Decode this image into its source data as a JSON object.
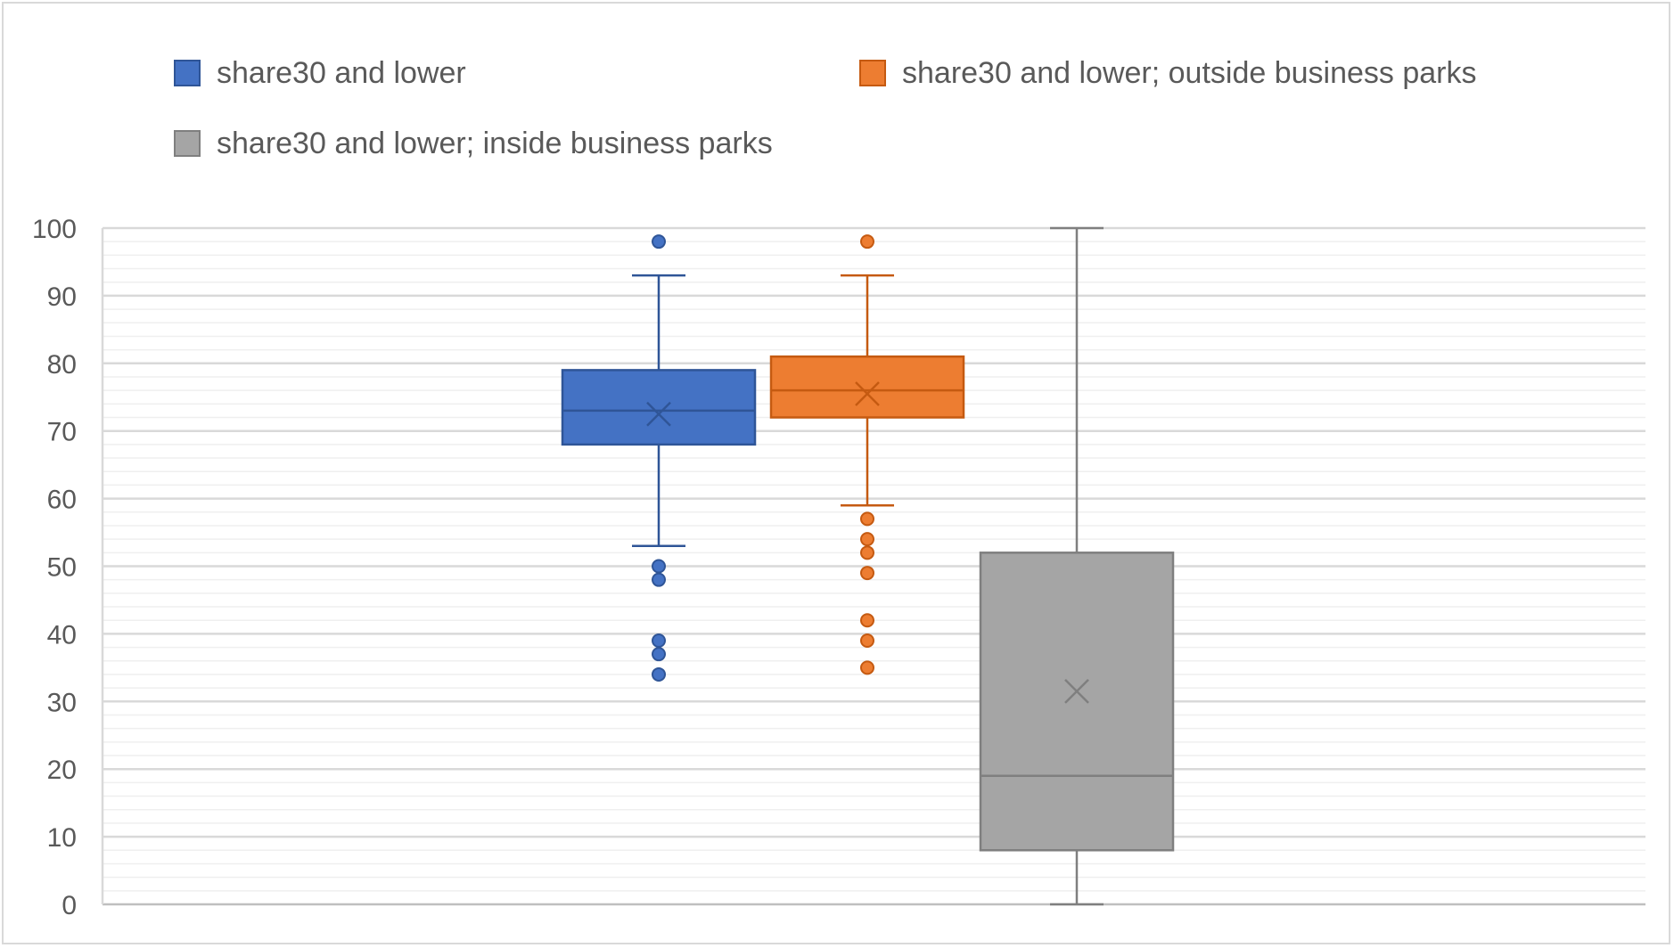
{
  "chart_data": {
    "type": "box",
    "title": "",
    "xlabel": "",
    "ylabel": "",
    "ylim": [
      0,
      100
    ],
    "yticks": [
      0,
      10,
      20,
      30,
      40,
      50,
      60,
      70,
      80,
      90,
      100
    ],
    "minor_step": 2,
    "grid": true,
    "legend_position": "top",
    "series": [
      {
        "name": "share30 and lower",
        "color": "#4472C4",
        "edge": "#2F5597",
        "whisker_low": 53,
        "q1": 68,
        "median": 73,
        "q3": 79,
        "whisker_high": 93,
        "mean": 72.5,
        "outliers": [
          98,
          50,
          48,
          39,
          37,
          34
        ]
      },
      {
        "name": "share30 and lower; outside business parks",
        "color": "#ED7D31",
        "edge": "#C55A11",
        "whisker_low": 59,
        "q1": 72,
        "median": 76,
        "q3": 81,
        "whisker_high": 93,
        "mean": 75.5,
        "outliers": [
          98,
          57,
          54,
          52,
          49,
          42,
          39,
          35
        ]
      },
      {
        "name": "share30 and lower; inside business parks",
        "color": "#A5A5A5",
        "edge": "#7F7F7F",
        "whisker_low": 0,
        "q1": 8,
        "median": 19,
        "q3": 52,
        "whisker_high": 100,
        "mean": 31.5,
        "outliers": []
      }
    ]
  }
}
